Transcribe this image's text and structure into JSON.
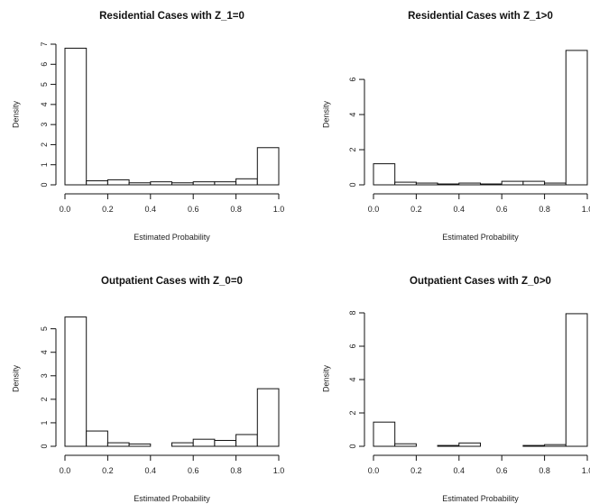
{
  "chart_data": [
    {
      "type": "bar",
      "title": "Residential Cases with Z_1=0",
      "xlabel": "Estimated Probability",
      "ylabel": "Density",
      "bin_edges": [
        0.0,
        0.1,
        0.2,
        0.3,
        0.4,
        0.5,
        0.6,
        0.7,
        0.8,
        0.9,
        1.0
      ],
      "values": [
        6.8,
        0.2,
        0.25,
        0.1,
        0.15,
        0.1,
        0.15,
        0.15,
        0.3,
        1.85
      ],
      "xlim": [
        0.0,
        1.0
      ],
      "ylim": [
        0,
        7
      ],
      "x_ticks": [
        "0.0",
        "0.2",
        "0.4",
        "0.6",
        "0.8",
        "1.0"
      ],
      "y_ticks": [
        "0",
        "1",
        "2",
        "3",
        "4",
        "5",
        "6",
        "7"
      ]
    },
    {
      "type": "bar",
      "title": "Residential Cases with Z_1>0",
      "xlabel": "Estimated Probability",
      "ylabel": "Density",
      "bin_edges": [
        0.0,
        0.1,
        0.2,
        0.3,
        0.4,
        0.5,
        0.6,
        0.7,
        0.8,
        0.9,
        1.0
      ],
      "values": [
        1.2,
        0.15,
        0.1,
        0.05,
        0.1,
        0.05,
        0.2,
        0.2,
        0.1,
        7.65
      ],
      "xlim": [
        0.0,
        1.0
      ],
      "ylim": [
        0,
        7.8
      ],
      "x_ticks": [
        "0.0",
        "0.2",
        "0.4",
        "0.6",
        "0.8",
        "1.0"
      ],
      "y_ticks": [
        "0",
        "2",
        "4",
        "6"
      ]
    },
    {
      "type": "bar",
      "title": "Outpatient Cases with Z_0=0",
      "xlabel": "Estimated Probability",
      "ylabel": "Density",
      "bin_edges": [
        0.0,
        0.1,
        0.2,
        0.3,
        0.4,
        0.5,
        0.6,
        0.7,
        0.8,
        0.9,
        1.0
      ],
      "values": [
        5.5,
        0.65,
        0.15,
        0.1,
        0.0,
        0.15,
        0.3,
        0.25,
        0.5,
        2.45
      ],
      "xlim": [
        0.0,
        1.0
      ],
      "ylim": [
        0,
        5.6
      ],
      "x_ticks": [
        "0.0",
        "0.2",
        "0.4",
        "0.6",
        "0.8",
        "1.0"
      ],
      "y_ticks": [
        "0",
        "1",
        "2",
        "3",
        "4",
        "5"
      ]
    },
    {
      "type": "bar",
      "title": "Outpatient Cases with Z_0>0",
      "xlabel": "Estimated Probability",
      "ylabel": "Density",
      "bin_edges": [
        0.0,
        0.1,
        0.2,
        0.3,
        0.4,
        0.5,
        0.6,
        0.7,
        0.8,
        0.9,
        1.0
      ],
      "values": [
        1.45,
        0.15,
        0.0,
        0.05,
        0.2,
        0.0,
        0.0,
        0.05,
        0.1,
        7.95
      ],
      "xlim": [
        0.0,
        1.0
      ],
      "ylim": [
        0,
        8
      ],
      "x_ticks": [
        "0.0",
        "0.2",
        "0.4",
        "0.6",
        "0.8",
        "1.0"
      ],
      "y_ticks": [
        "0",
        "2",
        "4",
        "6",
        "8"
      ]
    }
  ]
}
